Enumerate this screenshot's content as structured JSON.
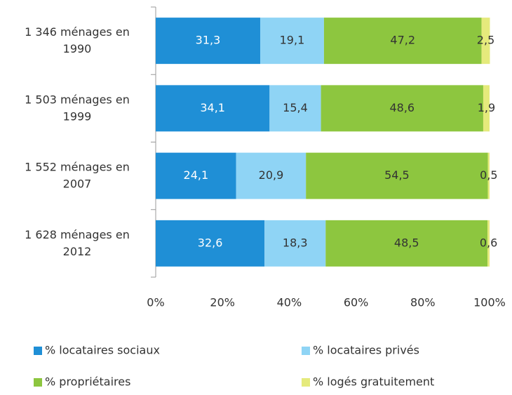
{
  "chart_data": {
    "type": "bar",
    "orientation": "horizontal",
    "stacked": true,
    "categories": [
      "1 346 ménages en 1990",
      "1 503 ménages en 1999",
      "1 552 ménages en 2007",
      "1 628 ménages en 2012"
    ],
    "series": [
      {
        "name": "% locataires sociaux",
        "color": "#1f8fd6",
        "values": [
          31.3,
          34.1,
          24.1,
          32.6
        ],
        "value_labels": [
          "31,3",
          "34,1",
          "24,1",
          "32,6"
        ]
      },
      {
        "name": "% locataires privés",
        "color": "#8fd4f5",
        "values": [
          19.1,
          15.4,
          20.9,
          18.3
        ],
        "value_labels": [
          "19,1",
          "15,4",
          "20,9",
          "18,3"
        ]
      },
      {
        "name": "% propriétaires",
        "color": "#8dc63f",
        "values": [
          47.2,
          48.6,
          54.5,
          48.5
        ],
        "value_labels": [
          "47,2",
          "48,6",
          "54,5",
          "48,5"
        ]
      },
      {
        "name": "% logés gratuitement",
        "color": "#e5ea7c",
        "values": [
          2.5,
          1.9,
          0.5,
          0.6
        ],
        "value_labels": [
          "2,5",
          "1,9",
          "0,5",
          "0,6"
        ]
      }
    ],
    "xlim": [
      0,
      100
    ],
    "xticks": [
      {
        "value": 0,
        "label": "0%"
      },
      {
        "value": 20,
        "label": "20%"
      },
      {
        "value": 40,
        "label": "40%"
      },
      {
        "value": 60,
        "label": "60%"
      },
      {
        "value": 80,
        "label": "80%"
      },
      {
        "value": 100,
        "label": "100%"
      }
    ],
    "legend": "bottom"
  }
}
